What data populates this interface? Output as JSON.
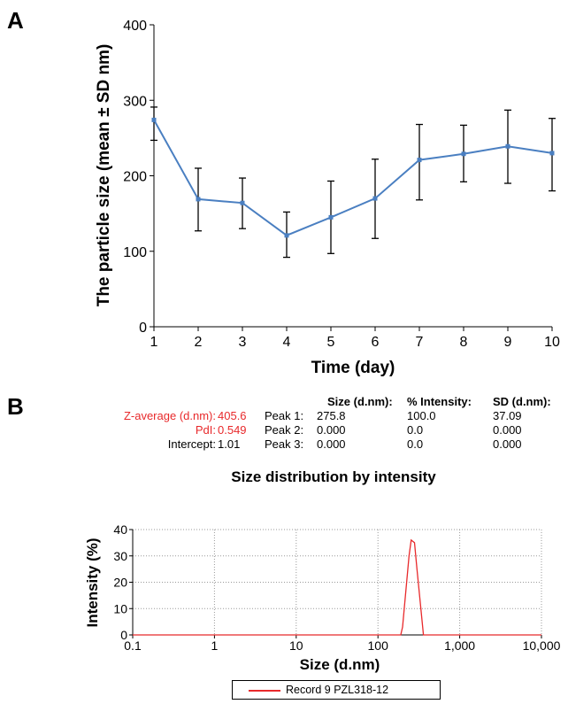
{
  "panelA": {
    "label": "A",
    "chart_data": {
      "type": "line",
      "x": [
        1,
        2,
        3,
        4,
        5,
        6,
        7,
        8,
        9,
        10
      ],
      "y": [
        274,
        169,
        164,
        121,
        145,
        170,
        221,
        229,
        239,
        230
      ],
      "y_err_upper": [
        291,
        210,
        197,
        152,
        193,
        222,
        268,
        267,
        287,
        276
      ],
      "y_err_lower": [
        247,
        127,
        130,
        92,
        97,
        117,
        168,
        192,
        190,
        180
      ],
      "xlabel": "Time (day)",
      "ylabel": "The particle size (mean ± SD nm)",
      "xlim": [
        1,
        10
      ],
      "ylim": [
        0,
        400
      ],
      "yticks": [
        0,
        100,
        200,
        300,
        400
      ],
      "xticks": [
        1,
        2,
        3,
        4,
        5,
        6,
        7,
        8,
        9,
        10
      ],
      "color": "#4a7fc1",
      "errorbar_color": "#000000",
      "grid": false
    }
  },
  "panelB": {
    "label": "B",
    "table": {
      "headers": [
        "Size (d.nm):",
        "% Intensity:",
        "SD (d.nm):"
      ],
      "left_rows": [
        {
          "label": "Z-average (d.nm):",
          "value": "405.6",
          "red": true
        },
        {
          "label": "PdI:",
          "value": "0.549",
          "red": true
        },
        {
          "label": "Intercept:",
          "value": "1.01",
          "red": false
        }
      ],
      "peaks": [
        {
          "name": "Peak 1:",
          "size": "275.8",
          "intensity": "100.0",
          "sd": "37.09"
        },
        {
          "name": "Peak 2:",
          "size": "0.000",
          "intensity": "0.0",
          "sd": "0.000"
        },
        {
          "name": "Peak 3:",
          "size": "0.000",
          "intensity": "0.0",
          "sd": "0.000"
        }
      ]
    },
    "chart_data": {
      "type": "line",
      "title": "Size distribution by intensity",
      "xlabel": "Size (d.nm)",
      "ylabel": "Intensity (%)",
      "xscale": "log",
      "xlim": [
        0.1,
        10000
      ],
      "ylim": [
        0,
        40
      ],
      "xticks": [
        0.1,
        1,
        10,
        100,
        1000,
        10000
      ],
      "xtick_labels": [
        "0.1",
        "1",
        "10",
        "100",
        "1,000",
        "10,000"
      ],
      "yticks": [
        0,
        10,
        20,
        30,
        40
      ],
      "grid": true,
      "series": [
        {
          "name": "Record 9 PZL318-12",
          "color": "#e8292b",
          "x": [
            0.1,
            190,
            200,
            240,
            255,
            280,
            300,
            330,
            360,
            10000
          ],
          "y": [
            0,
            0,
            3,
            30,
            36,
            35,
            25,
            12,
            0,
            0
          ]
        }
      ],
      "legend": "bottom-center"
    }
  }
}
